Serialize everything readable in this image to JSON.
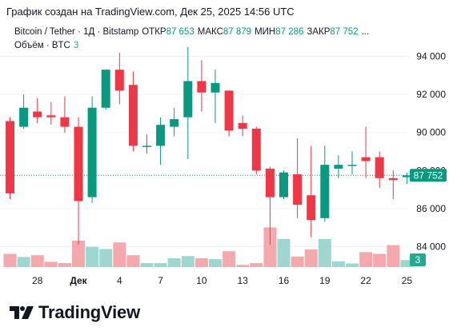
{
  "banner": "График создан на TradingView.com, Дек 25, 2025 14:56 UTC",
  "legend": {
    "symbol": "Bitcoin / Tether · 1Д · Bitstamp",
    "open_label": "ОТКР",
    "open_value": "87 653",
    "high_label": "МАКС",
    "high_value": "87 879",
    "low_label": "МИН",
    "low_value": "87 286",
    "close_label": "ЗАКР",
    "close_value": "87 752",
    "ellipsis": "...",
    "volume_label": "Объём · BTC",
    "volume_value": "3"
  },
  "brand": {
    "name": "TradingView"
  },
  "colors": {
    "up": "#089981",
    "down": "#f23645",
    "up_volume": "#9ed6d0",
    "down_volume": "#f5a9ad",
    "price_line": "#089981",
    "grid": "#f0f3fa",
    "axis_text": "#131722"
  },
  "chart_data": {
    "type": "candlestick",
    "y_axis": {
      "ticks": [
        "84 000",
        "86 000",
        "88 000",
        "90 000",
        "92 000",
        "94 000"
      ],
      "range": [
        83200,
        95000
      ],
      "side": "right"
    },
    "x_axis": {
      "tick_labels": [
        "28",
        "Дек",
        "4",
        "7",
        "10",
        "13",
        "16",
        "19",
        "22",
        "25"
      ]
    },
    "last_price_label": "87 752",
    "last_volume_label": "3",
    "candles": [
      {
        "o": 90600,
        "h": 90800,
        "l": 86500,
        "c": 86800,
        "v": 0.3
      },
      {
        "o": 90300,
        "h": 92000,
        "l": 90200,
        "c": 91300,
        "v": 0.23
      },
      {
        "o": 91100,
        "h": 91800,
        "l": 90500,
        "c": 90800,
        "v": 0.27
      },
      {
        "o": 90900,
        "h": 91600,
        "l": 90400,
        "c": 90800,
        "v": 0.12
      },
      {
        "o": 90800,
        "h": 91900,
        "l": 90000,
        "c": 90300,
        "v": 0.09
      },
      {
        "o": 90300,
        "h": 90800,
        "l": 84100,
        "c": 86400,
        "v": 0.6
      },
      {
        "o": 86600,
        "h": 91900,
        "l": 86300,
        "c": 91300,
        "v": 0.46
      },
      {
        "o": 91300,
        "h": 93300,
        "l": 91200,
        "c": 93300,
        "v": 0.41
      },
      {
        "o": 93300,
        "h": 94200,
        "l": 91500,
        "c": 92200,
        "v": 0.56
      },
      {
        "o": 92500,
        "h": 93200,
        "l": 89000,
        "c": 89300,
        "v": 0.27
      },
      {
        "o": 89300,
        "h": 89900,
        "l": 88900,
        "c": 89300,
        "v": 0.09
      },
      {
        "o": 89300,
        "h": 90800,
        "l": 88300,
        "c": 90400,
        "v": 0.09
      },
      {
        "o": 90300,
        "h": 91300,
        "l": 89800,
        "c": 90700,
        "v": 0.2
      },
      {
        "o": 90800,
        "h": 94500,
        "l": 88600,
        "c": 92700,
        "v": 0.25
      },
      {
        "o": 92700,
        "h": 93800,
        "l": 91100,
        "c": 92100,
        "v": 0.2
      },
      {
        "o": 92100,
        "h": 93300,
        "l": 90500,
        "c": 92600,
        "v": 0.18
      },
      {
        "o": 92200,
        "h": 92200,
        "l": 89800,
        "c": 90100,
        "v": 0.36
      },
      {
        "o": 90500,
        "h": 90900,
        "l": 89800,
        "c": 90200,
        "v": 0.05
      },
      {
        "o": 90200,
        "h": 90300,
        "l": 87800,
        "c": 88000,
        "v": 0.09
      },
      {
        "o": 88100,
        "h": 88200,
        "l": 84100,
        "c": 86600,
        "v": 0.9
      },
      {
        "o": 86600,
        "h": 88000,
        "l": 86500,
        "c": 87900,
        "v": 0.64
      },
      {
        "o": 87800,
        "h": 89700,
        "l": 85500,
        "c": 86200,
        "v": 0.24
      },
      {
        "o": 86700,
        "h": 89300,
        "l": 84500,
        "c": 85400,
        "v": 0.4
      },
      {
        "o": 85500,
        "h": 89300,
        "l": 85300,
        "c": 88300,
        "v": 0.64
      },
      {
        "o": 88100,
        "h": 88800,
        "l": 87600,
        "c": 88300,
        "v": 0.13
      },
      {
        "o": 88300,
        "h": 89000,
        "l": 87800,
        "c": 88300,
        "v": 0.08
      },
      {
        "o": 88700,
        "h": 90300,
        "l": 87600,
        "c": 88500,
        "v": 0.34
      },
      {
        "o": 88700,
        "h": 89000,
        "l": 87100,
        "c": 87600,
        "v": 0.3
      },
      {
        "o": 87600,
        "h": 88000,
        "l": 86500,
        "c": 87500,
        "v": 0.5
      },
      {
        "o": 87650,
        "h": 87900,
        "l": 87300,
        "c": 87750,
        "v": 0.16
      }
    ]
  }
}
